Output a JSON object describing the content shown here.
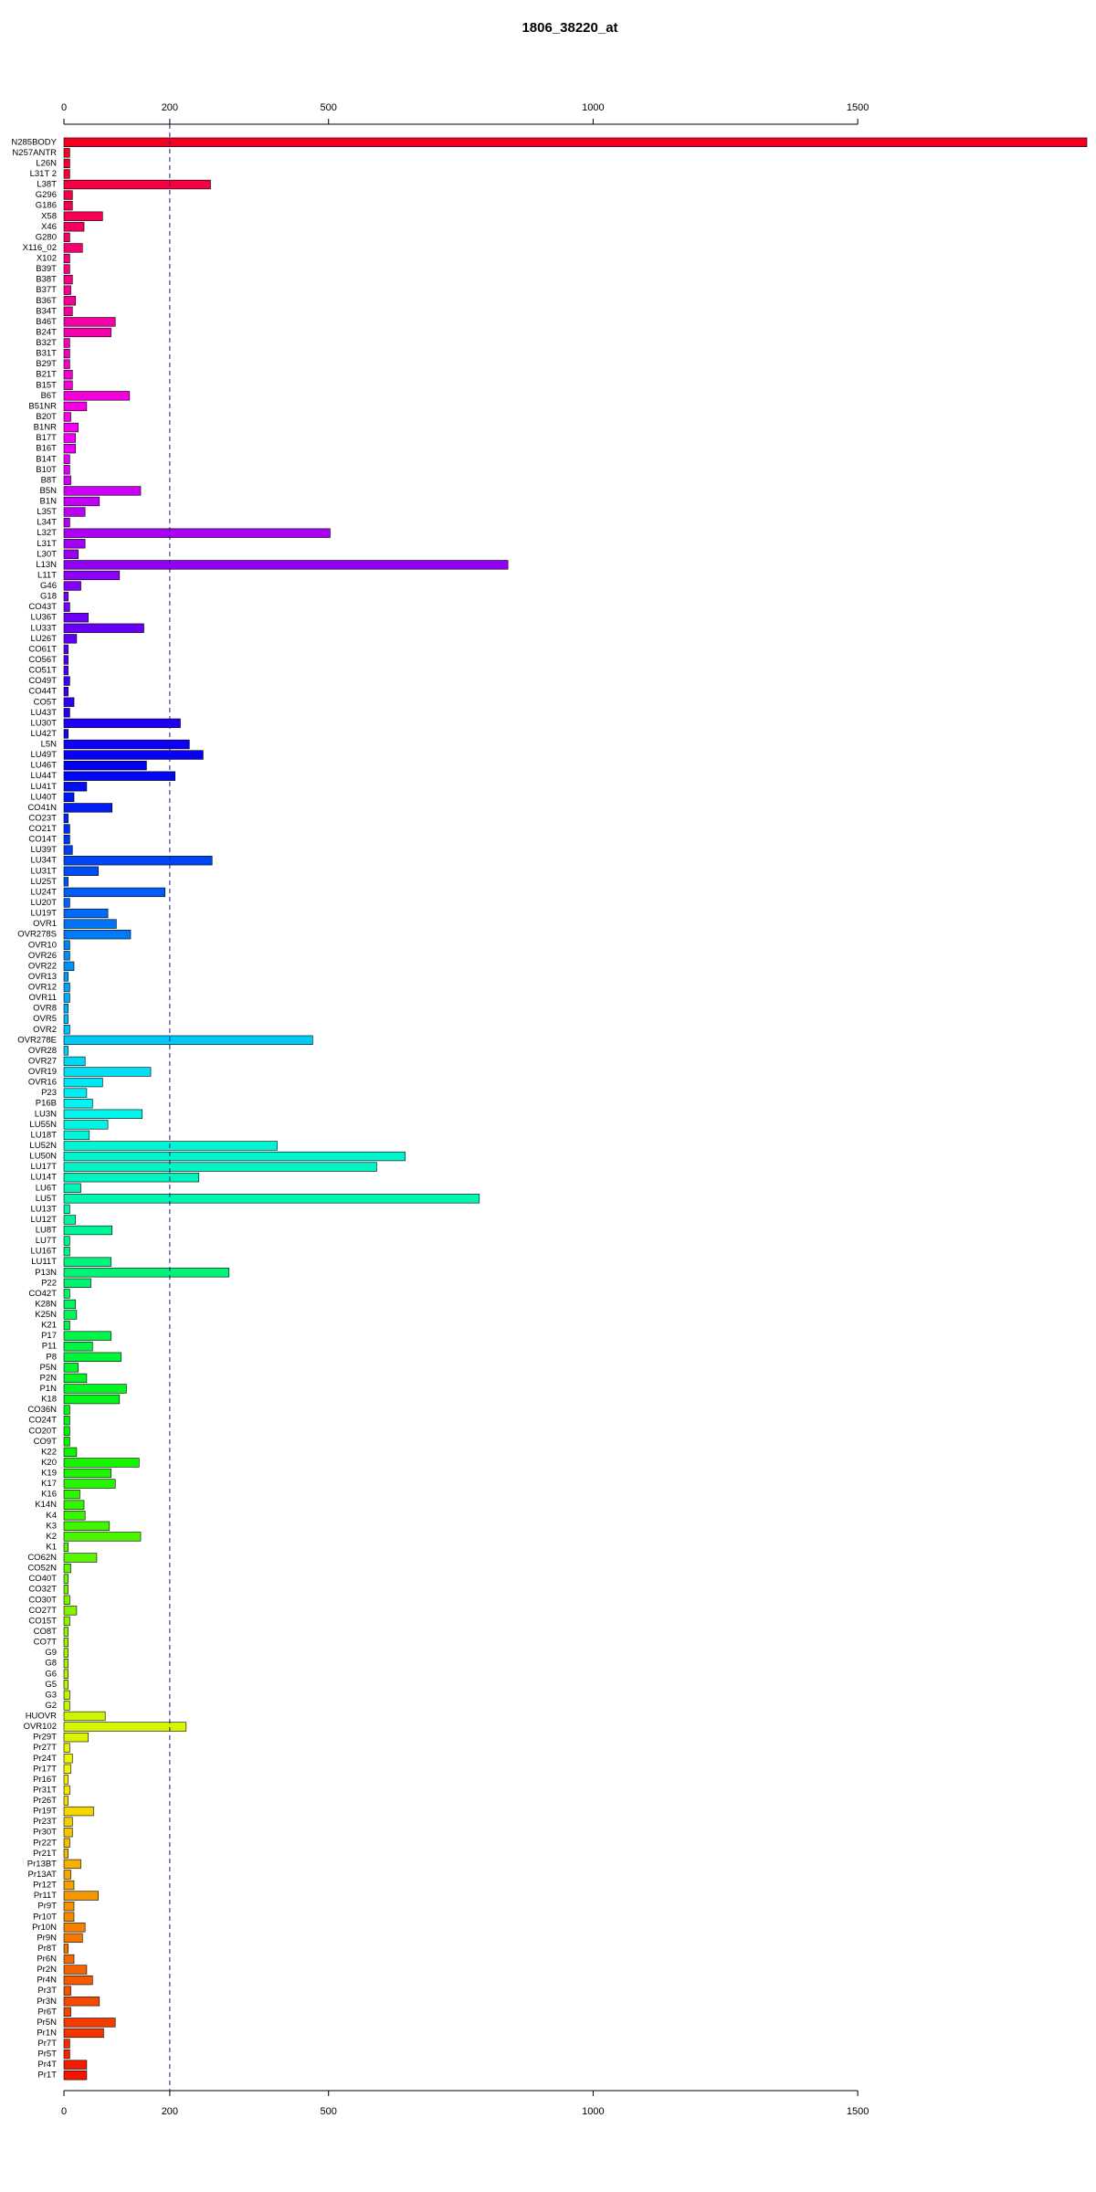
{
  "chart_data": {
    "type": "barh",
    "title": "1806_38220_at",
    "categories": [
      "N285BODY",
      "N257ANTR",
      "L26N",
      "L31T 2",
      "L38T",
      "G296",
      "G186",
      "X58",
      "X46",
      "G280",
      "X116_02",
      "X102",
      "B39T",
      "B38T",
      "B37T",
      "B36T",
      "B34T",
      "B46T",
      "B24T",
      "B32T",
      "B31T",
      "B29T",
      "B21T",
      "B15T",
      "B6T",
      "B51NR",
      "B20T",
      "B1NR",
      "B17T",
      "B16T",
      "B14T",
      "B10T",
      "B8T",
      "B5N",
      "B1N",
      "L35T",
      "L34T",
      "L32T",
      "L31T",
      "L30T",
      "L13N",
      "L11T",
      "G46",
      "G18",
      "CO43T",
      "LU36T",
      "LU33T",
      "LU26T",
      "CO61T",
      "CO56T",
      "CO51T",
      "CO49T",
      "CO44T",
      "CO5T",
      "LU43T",
      "LU30T",
      "LU42T",
      "L5N",
      "LU49T",
      "LU46T",
      "LU44T",
      "LU41T",
      "LU40T",
      "CO41N",
      "CO23T",
      "CO21T",
      "CO14T",
      "LU39T",
      "LU34T",
      "LU31T",
      "LU25T",
      "LU24T",
      "LU20T",
      "LU19T",
      "OVR1",
      "OVR278S",
      "OVR10",
      "OVR26",
      "OVR22",
      "OVR13",
      "OVR12",
      "OVR11",
      "OVR8",
      "OVR5",
      "OVR2",
      "OVR278E",
      "OVR28",
      "OVR27",
      "OVR19",
      "OVR16",
      "P23",
      "P16B",
      "LU3N",
      "LU55N",
      "LU18T",
      "LU52N",
      "LU50N",
      "LU17T",
      "LU14T",
      "LU6T",
      "LU5T",
      "LU13T",
      "LU12T",
      "LU8T",
      "LU7T",
      "LU16T",
      "LU11T",
      "P13N",
      "P22",
      "CO42T",
      "K28N",
      "K25N",
      "K21",
      "P17",
      "P11",
      "P8",
      "P5N",
      "P2N",
      "P1N",
      "K18",
      "CO36N",
      "CO24T",
      "CO20T",
      "CO9T",
      "K22",
      "K20",
      "K19",
      "K17",
      "K16",
      "K14N",
      "K4",
      "K3",
      "K2",
      "K1",
      "CO62N",
      "CO52N",
      "CO40T",
      "CO32T",
      "CO30T",
      "CO27T",
      "CO15T",
      "CO8T",
      "CO7T",
      "G9",
      "G8",
      "G6",
      "G5",
      "G3",
      "G2",
      "HUOVR",
      "OVR102",
      "Pr29T",
      "Pr27T",
      "Pr24T",
      "Pr17T",
      "Pr16T",
      "Pr31T",
      "Pr26T",
      "Pr19T",
      "Pr23T",
      "Pr30T",
      "Pr22T",
      "Pr21T",
      "Pr13BT",
      "Pr13AT",
      "Pr12T",
      "Pr11T",
      "Pr9T",
      "Pr10T",
      "Pr10N",
      "Pr9N",
      "Pr8T",
      "Pr6N",
      "Pr2N",
      "Pr4N",
      "Pr3T",
      "Pr3N",
      "Pr6T",
      "Pr5N",
      "Pr1N",
      "Pr7T",
      "Pr5T",
      "Pr4T",
      "Pr1T"
    ],
    "values": [
      1933,
      11,
      11,
      11,
      277,
      16,
      16,
      73,
      38,
      11,
      35,
      11,
      11,
      16,
      13,
      22,
      16,
      97,
      89,
      11,
      11,
      11,
      16,
      16,
      124,
      43,
      13,
      27,
      22,
      22,
      11,
      11,
      13,
      145,
      67,
      40,
      11,
      503,
      40,
      27,
      839,
      105,
      32,
      8,
      11,
      46,
      151,
      24,
      8,
      8,
      8,
      11,
      8,
      19,
      11,
      220,
      8,
      237,
      263,
      156,
      210,
      43,
      19,
      91,
      8,
      11,
      11,
      16,
      280,
      65,
      8,
      191,
      11,
      83,
      99,
      126,
      11,
      11,
      19,
      8,
      11,
      11,
      8,
      8,
      11,
      470,
      8,
      40,
      164,
      73,
      43,
      54,
      148,
      83,
      48,
      403,
      645,
      591,
      255,
      32,
      785,
      11,
      22,
      91,
      11,
      11,
      89,
      312,
      51,
      11,
      22,
      24,
      11,
      89,
      54,
      108,
      27,
      43,
      118,
      105,
      11,
      11,
      11,
      11,
      24,
      142,
      89,
      97,
      30,
      38,
      40,
      86,
      145,
      8,
      62,
      13,
      8,
      8,
      11,
      24,
      11,
      8,
      8,
      8,
      8,
      8,
      8,
      11,
      11,
      78,
      231,
      46,
      11,
      16,
      13,
      8,
      11,
      8,
      56,
      16,
      16,
      11,
      8,
      32,
      13,
      19,
      65,
      19,
      19,
      40,
      35,
      8,
      19,
      43,
      54,
      13,
      67,
      13,
      97,
      75,
      11,
      11,
      43,
      43
    ],
    "hue_range": [
      352,
      5
    ],
    "xlim": [
      0,
      1933
    ],
    "xticks": [
      0,
      200,
      500,
      1000,
      1500
    ],
    "ref_line": 200
  }
}
